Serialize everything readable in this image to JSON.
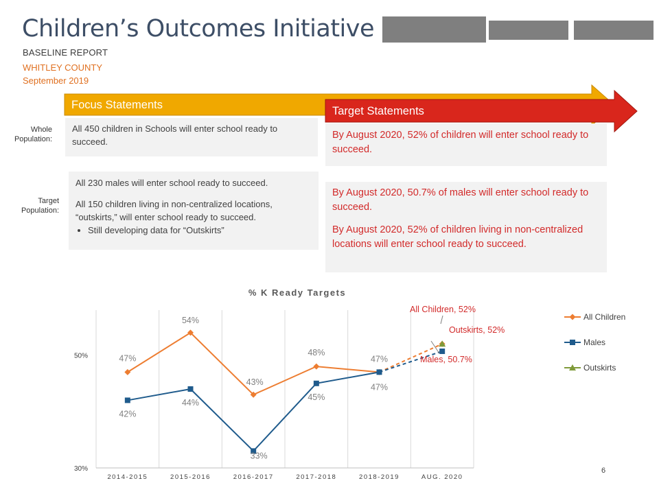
{
  "header": {
    "title": "Children’s Outcomes Initiative",
    "subtitle": "BASELINE REPORT",
    "county": "WHITLEY COUNTY",
    "date": "September 2019"
  },
  "banners": {
    "focus": "Focus Statements",
    "target": "Target Statements",
    "focus_color": "#f0a800",
    "target_color": "#d9261c"
  },
  "rows": {
    "whole_label": "Whole\nPopulation:",
    "target_label": "Target\nPopulation:",
    "whole_focus": "All 450 children in Schools will enter school ready to succeed.",
    "whole_target": "By August 2020, 52% of children will enter school ready to succeed.",
    "target_focus_1": "All 230 males will enter school ready to succeed.",
    "target_focus_2": "All 150 children living in non-centralized locations, “outskirts,” will enter school ready to succeed.",
    "target_focus_bullet": "Still developing data for “Outskirts”",
    "target_target_1": "By August 2020, 50.7% of males will enter school ready to succeed.",
    "target_target_2": "By August 2020, 52% of children living in non-centralized locations will enter school ready to succeed."
  },
  "page_number": "6",
  "chart_data": {
    "type": "line",
    "title": "% K Ready Targets",
    "categories": [
      "2014-2015",
      "2015-2016",
      "2016-2017",
      "2017-2018",
      "2018-2019",
      "AUG. 2020"
    ],
    "ylim": [
      30,
      58
    ],
    "yticks": [
      {
        "value": 50,
        "label": "50%"
      },
      {
        "value": 30,
        "label": "30%"
      }
    ],
    "grid": "vertical",
    "legend_position": "right",
    "series": [
      {
        "name": "All Children",
        "color": "#ed7d31",
        "marker": "diamond",
        "values": [
          47,
          54,
          43,
          48,
          47,
          52
        ],
        "labels": [
          "47%",
          "54%",
          "43%",
          "48%",
          "47%",
          ""
        ],
        "target_label": "All Children, 52%"
      },
      {
        "name": "Males",
        "color": "#1f5b8c",
        "marker": "square",
        "values": [
          42,
          44,
          33,
          45,
          47,
          50.7
        ],
        "labels": [
          "42%",
          "44%",
          "33%",
          "45%",
          "47%",
          ""
        ],
        "target_label": "Males, 50.7%"
      },
      {
        "name": "Outskirts",
        "color": "#7f9a3a",
        "marker": "triangle",
        "values": [
          null,
          null,
          null,
          null,
          null,
          52
        ],
        "labels": [
          "",
          "",
          "",
          "",
          "",
          ""
        ],
        "target_label": "Outskirts, 52%"
      }
    ]
  }
}
